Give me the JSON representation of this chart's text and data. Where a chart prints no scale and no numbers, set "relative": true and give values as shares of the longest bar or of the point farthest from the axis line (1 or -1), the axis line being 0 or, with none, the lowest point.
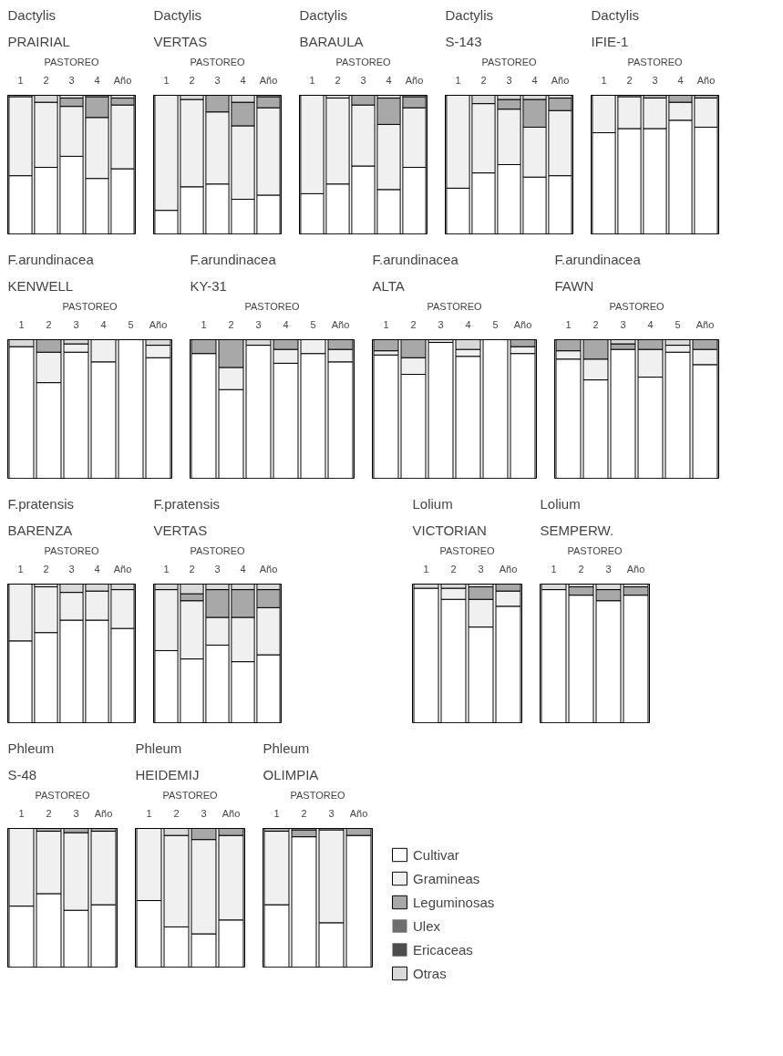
{
  "chart_data": [
    {
      "type": "bar",
      "stacked": true,
      "relative": true,
      "title": "Dactylis",
      "subtitle": "PRAIRIAL",
      "xlabel": "PASTOREO",
      "categories": [
        "1",
        "2",
        "3",
        "4",
        "Año"
      ],
      "series": [
        {
          "color": "#ffffff",
          "values": [
            0.42,
            0.48,
            0.56,
            0.4,
            0.47
          ]
        },
        {
          "color": "#f0f0f0",
          "values": [
            0.57,
            0.47,
            0.36,
            0.44,
            0.46
          ]
        },
        {
          "color": "#a8a8a8",
          "values": [
            0,
            0,
            0.06,
            0.15,
            0.05
          ]
        },
        {
          "color": "#6e6e6e",
          "values": [
            0,
            0,
            0,
            0,
            0
          ]
        },
        {
          "color": "#4d4d4d",
          "values": [
            0,
            0,
            0,
            0,
            0
          ]
        },
        {
          "color": "#d9d9d9",
          "values": [
            0.01,
            0.05,
            0.02,
            0.01,
            0.02
          ]
        }
      ]
    },
    {
      "type": "bar",
      "stacked": true,
      "relative": true,
      "title": "Dactylis",
      "subtitle": "VERTAS",
      "xlabel": "PASTOREO",
      "categories": [
        "1",
        "2",
        "3",
        "4",
        "Año"
      ],
      "series": [
        {
          "color": "#ffffff",
          "values": [
            0.17,
            0.34,
            0.36,
            0.25,
            0.28
          ]
        },
        {
          "color": "#f0f0f0",
          "values": [
            0.83,
            0.63,
            0.52,
            0.53,
            0.63
          ]
        },
        {
          "color": "#a8a8a8",
          "values": [
            0,
            0,
            0.12,
            0.17,
            0.08
          ]
        },
        {
          "color": "#6e6e6e",
          "values": [
            0,
            0,
            0,
            0,
            0
          ]
        },
        {
          "color": "#4d4d4d",
          "values": [
            0,
            0,
            0,
            0,
            0
          ]
        },
        {
          "color": "#d9d9d9",
          "values": [
            0,
            0.03,
            0,
            0.05,
            0.01
          ]
        }
      ]
    },
    {
      "type": "bar",
      "stacked": true,
      "relative": true,
      "title": "Dactylis",
      "subtitle": "BARAULA",
      "xlabel": "PASTOREO",
      "categories": [
        "1",
        "2",
        "3",
        "4",
        "Año"
      ],
      "series": [
        {
          "color": "#ffffff",
          "values": [
            0.29,
            0.36,
            0.49,
            0.32,
            0.48
          ]
        },
        {
          "color": "#f0f0f0",
          "values": [
            0.71,
            0.62,
            0.44,
            0.47,
            0.43
          ]
        },
        {
          "color": "#a8a8a8",
          "values": [
            0,
            0,
            0.07,
            0.19,
            0.08
          ]
        },
        {
          "color": "#6e6e6e",
          "values": [
            0,
            0,
            0,
            0,
            0
          ]
        },
        {
          "color": "#4d4d4d",
          "values": [
            0,
            0,
            0,
            0,
            0
          ]
        },
        {
          "color": "#d9d9d9",
          "values": [
            0,
            0.02,
            0,
            0.02,
            0.01
          ]
        }
      ]
    },
    {
      "type": "bar",
      "stacked": true,
      "relative": true,
      "title": "Dactylis",
      "subtitle": "S-143",
      "xlabel": "PASTOREO",
      "categories": [
        "1",
        "2",
        "3",
        "4",
        "Año"
      ],
      "series": [
        {
          "color": "#ffffff",
          "values": [
            0.33,
            0.44,
            0.5,
            0.41,
            0.42
          ]
        },
        {
          "color": "#f0f0f0",
          "values": [
            0.67,
            0.5,
            0.4,
            0.36,
            0.47
          ]
        },
        {
          "color": "#a8a8a8",
          "values": [
            0,
            0,
            0.07,
            0.2,
            0.09
          ]
        },
        {
          "color": "#6e6e6e",
          "values": [
            0,
            0,
            0,
            0,
            0
          ]
        },
        {
          "color": "#4d4d4d",
          "values": [
            0,
            0,
            0,
            0,
            0
          ]
        },
        {
          "color": "#d9d9d9",
          "values": [
            0,
            0.06,
            0.03,
            0.03,
            0.02
          ]
        }
      ]
    },
    {
      "type": "bar",
      "stacked": true,
      "relative": true,
      "title": "Dactylis",
      "subtitle": "IFIE-1",
      "xlabel": "PASTOREO",
      "categories": [
        "1",
        "2",
        "3",
        "4",
        "Año"
      ],
      "series": [
        {
          "color": "#ffffff",
          "values": [
            0.73,
            0.76,
            0.76,
            0.82,
            0.77
          ]
        },
        {
          "color": "#f0f0f0",
          "values": [
            0.27,
            0.23,
            0.22,
            0.13,
            0.21
          ]
        },
        {
          "color": "#a8a8a8",
          "values": [
            0,
            0,
            0.02,
            0.05,
            0.02
          ]
        },
        {
          "color": "#6e6e6e",
          "values": [
            0,
            0,
            0,
            0,
            0
          ]
        },
        {
          "color": "#4d4d4d",
          "values": [
            0,
            0,
            0,
            0,
            0
          ]
        },
        {
          "color": "#d9d9d9",
          "values": [
            0,
            0.01,
            0,
            0,
            0
          ]
        }
      ]
    },
    {
      "type": "bar",
      "stacked": true,
      "relative": true,
      "title": "F.arundinacea",
      "subtitle": "KENWELL",
      "xlabel": "PASTOREO",
      "categories": [
        "1",
        "2",
        "3",
        "4",
        "5",
        "Año"
      ],
      "series": [
        {
          "color": "#ffffff",
          "values": [
            0.95,
            0.69,
            0.91,
            0.84,
            1.0,
            0.87
          ]
        },
        {
          "color": "#f0f0f0",
          "values": [
            0,
            0.22,
            0.06,
            0.16,
            0,
            0.09
          ]
        },
        {
          "color": "#a8a8a8",
          "values": [
            0,
            0.09,
            0,
            0,
            0,
            0
          ]
        },
        {
          "color": "#6e6e6e",
          "values": [
            0,
            0,
            0,
            0,
            0,
            0
          ]
        },
        {
          "color": "#4d4d4d",
          "values": [
            0,
            0,
            0,
            0,
            0,
            0
          ]
        },
        {
          "color": "#d9d9d9",
          "values": [
            0.05,
            0,
            0.03,
            0,
            0,
            0.04
          ]
        }
      ]
    },
    {
      "type": "bar",
      "stacked": true,
      "relative": true,
      "title": "F.arundinacea",
      "subtitle": "KY-31",
      "xlabel": "PASTOREO",
      "categories": [
        "1",
        "2",
        "3",
        "4",
        "5",
        "Año"
      ],
      "series": [
        {
          "color": "#ffffff",
          "values": [
            0.9,
            0.64,
            0.96,
            0.83,
            0.9,
            0.84
          ]
        },
        {
          "color": "#f0f0f0",
          "values": [
            0,
            0.16,
            0,
            0.1,
            0.1,
            0.09
          ]
        },
        {
          "color": "#a8a8a8",
          "values": [
            0.1,
            0.2,
            0,
            0.07,
            0,
            0.07
          ]
        },
        {
          "color": "#6e6e6e",
          "values": [
            0,
            0,
            0,
            0,
            0,
            0
          ]
        },
        {
          "color": "#4d4d4d",
          "values": [
            0,
            0,
            0,
            0,
            0,
            0
          ]
        },
        {
          "color": "#d9d9d9",
          "values": [
            0,
            0,
            0.04,
            0,
            0,
            0
          ]
        }
      ]
    },
    {
      "type": "bar",
      "stacked": true,
      "relative": true,
      "title": "F.arundinacea",
      "subtitle": "ALTA",
      "xlabel": "PASTOREO",
      "categories": [
        "1",
        "2",
        "3",
        "4",
        "5",
        "Año"
      ],
      "series": [
        {
          "color": "#ffffff",
          "values": [
            0.89,
            0.75,
            0.98,
            0.88,
            1.0,
            0.9
          ]
        },
        {
          "color": "#f0f0f0",
          "values": [
            0.03,
            0.12,
            0,
            0.05,
            0,
            0.05
          ]
        },
        {
          "color": "#a8a8a8",
          "values": [
            0.08,
            0.13,
            0,
            0,
            0,
            0.05
          ]
        },
        {
          "color": "#6e6e6e",
          "values": [
            0,
            0,
            0,
            0,
            0,
            0
          ]
        },
        {
          "color": "#4d4d4d",
          "values": [
            0,
            0,
            0,
            0,
            0,
            0
          ]
        },
        {
          "color": "#d9d9d9",
          "values": [
            0,
            0,
            0.02,
            0.07,
            0,
            0
          ]
        }
      ]
    },
    {
      "type": "bar",
      "stacked": true,
      "relative": true,
      "title": "F.arundinacea",
      "subtitle": "FAWN",
      "xlabel": "PASTOREO",
      "categories": [
        "1",
        "2",
        "3",
        "4",
        "5",
        "Año"
      ],
      "series": [
        {
          "color": "#ffffff",
          "values": [
            0.86,
            0.71,
            0.93,
            0.73,
            0.91,
            0.82
          ]
        },
        {
          "color": "#f0f0f0",
          "values": [
            0.06,
            0.15,
            0,
            0.2,
            0.05,
            0.11
          ]
        },
        {
          "color": "#a8a8a8",
          "values": [
            0.08,
            0.14,
            0.04,
            0.07,
            0,
            0.07
          ]
        },
        {
          "color": "#6e6e6e",
          "values": [
            0,
            0,
            0,
            0,
            0,
            0
          ]
        },
        {
          "color": "#4d4d4d",
          "values": [
            0,
            0,
            0,
            0,
            0,
            0
          ]
        },
        {
          "color": "#d9d9d9",
          "values": [
            0,
            0,
            0.03,
            0,
            0.04,
            0
          ]
        }
      ]
    },
    {
      "type": "bar",
      "stacked": true,
      "relative": true,
      "title": "F.pratensis",
      "subtitle": "BARENZA",
      "xlabel": "PASTOREO",
      "categories": [
        "1",
        "2",
        "3",
        "4",
        "Año"
      ],
      "series": [
        {
          "color": "#ffffff",
          "values": [
            0.59,
            0.65,
            0.74,
            0.74,
            0.68
          ]
        },
        {
          "color": "#f0f0f0",
          "values": [
            0.41,
            0.33,
            0.2,
            0.21,
            0.28
          ]
        },
        {
          "color": "#a8a8a8",
          "values": [
            0,
            0,
            0,
            0,
            0
          ]
        },
        {
          "color": "#6e6e6e",
          "values": [
            0,
            0,
            0,
            0,
            0
          ]
        },
        {
          "color": "#4d4d4d",
          "values": [
            0,
            0,
            0,
            0,
            0
          ]
        },
        {
          "color": "#d9d9d9",
          "values": [
            0,
            0.02,
            0.06,
            0.05,
            0.04
          ]
        }
      ]
    },
    {
      "type": "bar",
      "stacked": true,
      "relative": true,
      "title": "F.pratensis",
      "subtitle": "VERTAS",
      "xlabel": "PASTOREO",
      "categories": [
        "1",
        "2",
        "3",
        "4",
        "Año"
      ],
      "series": [
        {
          "color": "#ffffff",
          "values": [
            0.52,
            0.46,
            0.56,
            0.44,
            0.49
          ]
        },
        {
          "color": "#f0f0f0",
          "values": [
            0.44,
            0.42,
            0.2,
            0.32,
            0.34
          ]
        },
        {
          "color": "#a8a8a8",
          "values": [
            0,
            0.05,
            0.2,
            0.2,
            0.13
          ]
        },
        {
          "color": "#6e6e6e",
          "values": [
            0,
            0,
            0,
            0,
            0
          ]
        },
        {
          "color": "#4d4d4d",
          "values": [
            0,
            0,
            0,
            0,
            0
          ]
        },
        {
          "color": "#d9d9d9",
          "values": [
            0.04,
            0.07,
            0.04,
            0.04,
            0.04
          ]
        }
      ]
    },
    {
      "type": "bar",
      "stacked": true,
      "relative": true,
      "title": "Lolium",
      "subtitle": "VICTORIAN",
      "xlabel": "PASTOREO",
      "categories": [
        "1",
        "2",
        "3",
        "Año"
      ],
      "series": [
        {
          "color": "#ffffff",
          "values": [
            0.97,
            0.89,
            0.69,
            0.84
          ]
        },
        {
          "color": "#f0f0f0",
          "values": [
            0,
            0.08,
            0.2,
            0.11
          ]
        },
        {
          "color": "#a8a8a8",
          "values": [
            0,
            0,
            0.09,
            0.05
          ]
        },
        {
          "color": "#6e6e6e",
          "values": [
            0,
            0,
            0,
            0
          ]
        },
        {
          "color": "#4d4d4d",
          "values": [
            0,
            0,
            0,
            0
          ]
        },
        {
          "color": "#d9d9d9",
          "values": [
            0.03,
            0.03,
            0.02,
            0
          ]
        }
      ]
    },
    {
      "type": "bar",
      "stacked": true,
      "relative": true,
      "title": "Lolium",
      "subtitle": "SEMPERW.",
      "xlabel": "PASTOREO",
      "categories": [
        "1",
        "2",
        "3",
        "Año"
      ],
      "series": [
        {
          "color": "#ffffff",
          "values": [
            0.96,
            0.92,
            0.88,
            0.92
          ]
        },
        {
          "color": "#f0f0f0",
          "values": [
            0,
            0,
            0,
            0
          ]
        },
        {
          "color": "#a8a8a8",
          "values": [
            0,
            0.06,
            0.08,
            0.06
          ]
        },
        {
          "color": "#6e6e6e",
          "values": [
            0,
            0,
            0,
            0
          ]
        },
        {
          "color": "#4d4d4d",
          "values": [
            0,
            0,
            0,
            0
          ]
        },
        {
          "color": "#d9d9d9",
          "values": [
            0.04,
            0.02,
            0.04,
            0.02
          ]
        }
      ]
    },
    {
      "type": "bar",
      "stacked": true,
      "relative": true,
      "title": "Phleum",
      "subtitle": "S-48",
      "xlabel": "PASTOREO",
      "categories": [
        "1",
        "2",
        "3",
        "Año"
      ],
      "series": [
        {
          "color": "#ffffff",
          "values": [
            0.44,
            0.53,
            0.41,
            0.45
          ]
        },
        {
          "color": "#f0f0f0",
          "values": [
            0.56,
            0.45,
            0.56,
            0.53
          ]
        },
        {
          "color": "#a8a8a8",
          "values": [
            0,
            0.02,
            0.03,
            0.02
          ]
        },
        {
          "color": "#6e6e6e",
          "values": [
            0,
            0,
            0,
            0
          ]
        },
        {
          "color": "#4d4d4d",
          "values": [
            0,
            0,
            0,
            0
          ]
        },
        {
          "color": "#d9d9d9",
          "values": [
            0,
            0,
            0,
            0
          ]
        }
      ]
    },
    {
      "type": "bar",
      "stacked": true,
      "relative": true,
      "title": "Phleum",
      "subtitle": "HEIDEMIJ",
      "xlabel": "PASTOREO",
      "categories": [
        "1",
        "2",
        "3",
        "Año"
      ],
      "series": [
        {
          "color": "#ffffff",
          "values": [
            0.48,
            0.29,
            0.24,
            0.34
          ]
        },
        {
          "color": "#f0f0f0",
          "values": [
            0.52,
            0.66,
            0.68,
            0.61
          ]
        },
        {
          "color": "#a8a8a8",
          "values": [
            0,
            0,
            0.08,
            0.05
          ]
        },
        {
          "color": "#6e6e6e",
          "values": [
            0,
            0,
            0,
            0
          ]
        },
        {
          "color": "#4d4d4d",
          "values": [
            0,
            0,
            0,
            0
          ]
        },
        {
          "color": "#d9d9d9",
          "values": [
            0,
            0.05,
            0,
            0
          ]
        }
      ]
    },
    {
      "type": "bar",
      "stacked": true,
      "relative": true,
      "title": "Phleum",
      "subtitle": "OLIMPIA",
      "xlabel": "PASTOREO",
      "categories": [
        "1",
        "2",
        "3",
        "Año"
      ],
      "legend": "right",
      "series": [
        {
          "name": "Cultivar",
          "color": "#ffffff",
          "values": [
            0.45,
            0.94,
            0.32,
            0.95
          ]
        },
        {
          "name": "Gramineas",
          "color": "#f0f0f0",
          "values": [
            0.53,
            0,
            0.67,
            0
          ]
        },
        {
          "name": "Leguminosas",
          "color": "#a8a8a8",
          "values": [
            0.02,
            0.05,
            0,
            0.05
          ]
        },
        {
          "name": "Ulex",
          "color": "#6e6e6e",
          "values": [
            0,
            0,
            0,
            0
          ]
        },
        {
          "name": "Ericaceas",
          "color": "#4d4d4d",
          "values": [
            0,
            0,
            0,
            0
          ]
        },
        {
          "name": "Otras",
          "color": "#d9d9d9",
          "values": [
            0,
            0.01,
            0.01,
            0
          ]
        }
      ]
    }
  ]
}
